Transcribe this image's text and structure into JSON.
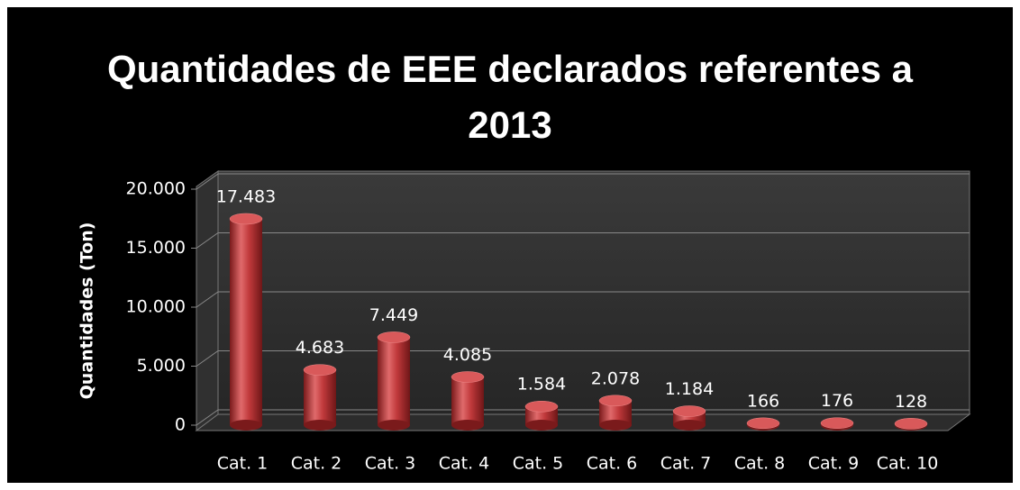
{
  "chart_data": {
    "type": "bar",
    "title": "Quantidades de EEE declarados referentes a 2013",
    "y_label": "Quantidades (Ton)",
    "categories": [
      "Cat. 1",
      "Cat. 2",
      "Cat. 3",
      "Cat. 4",
      "Cat. 5",
      "Cat. 6",
      "Cat. 7",
      "Cat. 8",
      "Cat. 9",
      "Cat. 10"
    ],
    "values": [
      17483,
      4683,
      7449,
      4085,
      1584,
      2078,
      1184,
      166,
      176,
      128
    ],
    "value_labels": [
      "17.483",
      "4.683",
      "7.449",
      "4.085",
      "1.584",
      "2.078",
      "1.184",
      "166",
      "176",
      "128"
    ],
    "color": "#c0393b",
    "ylim": [
      0,
      20000
    ],
    "yticks": [
      0,
      {
        "value": 5000,
        "label": "5.000"
      },
      {
        "value": 10000,
        "label": "10.000"
      },
      {
        "value": 15000,
        "label": "15.000"
      },
      {
        "value": 20000,
        "label": "20.000"
      }
    ],
    "grid": true
  }
}
